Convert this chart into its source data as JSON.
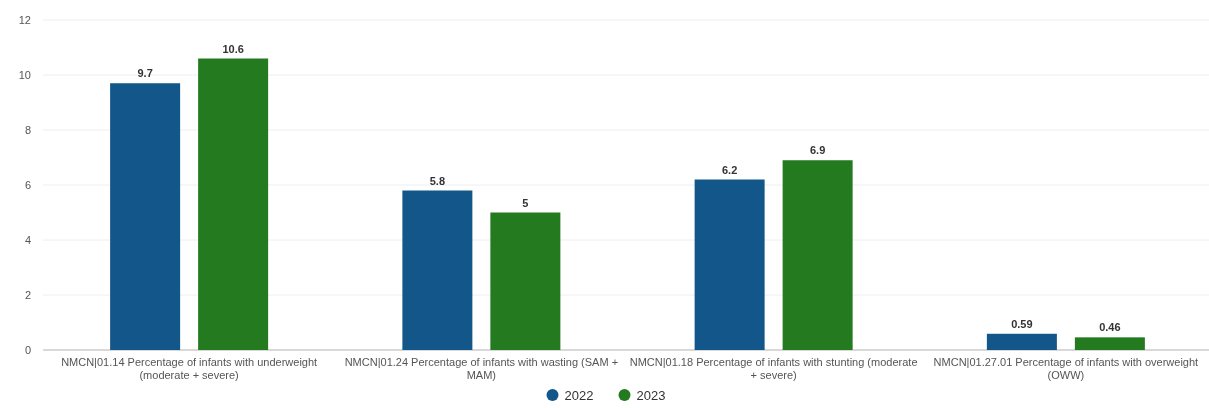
{
  "chart_data": {
    "type": "bar",
    "categories": [
      "NMCN|01.14 Percentage of infants with underweight (moderate + severe)",
      "NMCN|01.24 Percentage of infants with wasting (SAM + MAM)",
      "NMCN|01.18 Percentage of infants with stunting (moderate + severe)",
      "NMCN|01.27.01 Percentage of infants with overweight (OWW)"
    ],
    "series": [
      {
        "name": "2022",
        "color": "#12568a",
        "values": [
          9.7,
          5.8,
          6.2,
          0.59
        ]
      },
      {
        "name": "2023",
        "color": "#237a1f",
        "values": [
          10.6,
          5,
          6.9,
          0.46
        ]
      }
    ],
    "ylim": [
      0,
      12
    ],
    "yticks": [
      0,
      2,
      4,
      6,
      8,
      10,
      12
    ],
    "grid": "y",
    "legend": "bottom",
    "data_labels": true
  }
}
